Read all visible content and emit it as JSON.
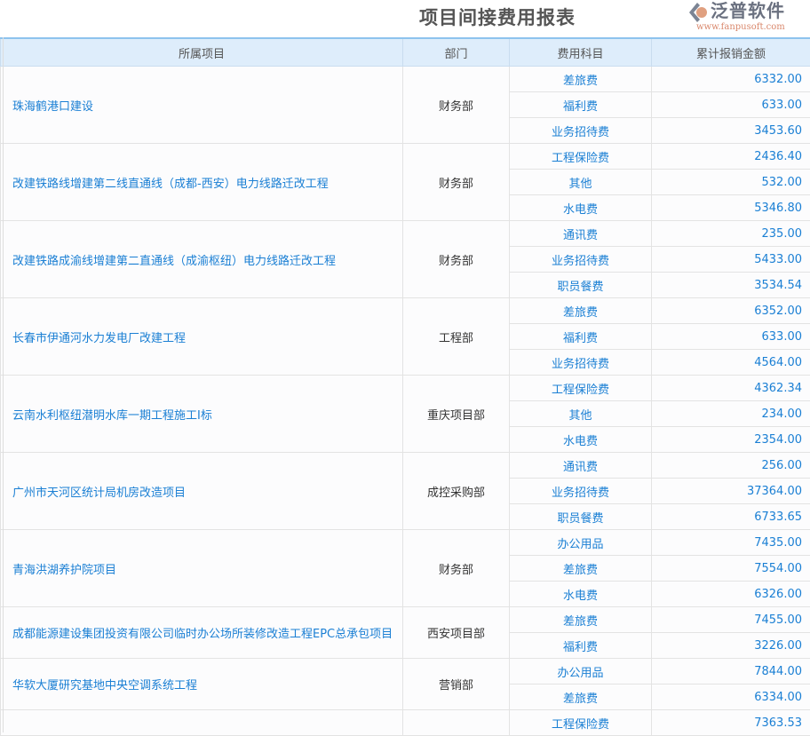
{
  "title": "项目间接费用报表",
  "columns": [
    "所属项目",
    "部门",
    "费用科目",
    "累计报销金额"
  ],
  "groups": [
    {
      "project": "珠海鹤港口建设",
      "dept": "财务部",
      "rows": [
        [
          "差旅费",
          "6332.00"
        ],
        [
          "福利费",
          "633.00"
        ],
        [
          "业务招待费",
          "3453.60"
        ]
      ]
    },
    {
      "project": "改建铁路线增建第二线直通线（成都-西安）电力线路迁改工程",
      "dept": "财务部",
      "rows": [
        [
          "工程保险费",
          "2436.40"
        ],
        [
          "其他",
          "532.00"
        ],
        [
          "水电费",
          "5346.80"
        ]
      ]
    },
    {
      "project": "改建铁路成渝线增建第二直通线（成渝枢纽）电力线路迁改工程",
      "dept": "财务部",
      "rows": [
        [
          "通讯费",
          "235.00"
        ],
        [
          "业务招待费",
          "5433.00"
        ],
        [
          "职员餐费",
          "3534.54"
        ]
      ]
    },
    {
      "project": "长春市伊通河水力发电厂改建工程",
      "dept": "工程部",
      "rows": [
        [
          "差旅费",
          "6352.00"
        ],
        [
          "福利费",
          "633.00"
        ],
        [
          "业务招待费",
          "4564.00"
        ]
      ]
    },
    {
      "project": "云南水利枢纽潜明水库一期工程施工I标",
      "dept": "重庆项目部",
      "rows": [
        [
          "工程保险费",
          "4362.34"
        ],
        [
          "其他",
          "234.00"
        ],
        [
          "水电费",
          "2354.00"
        ]
      ]
    },
    {
      "project": "广州市天河区统计局机房改造项目",
      "dept": "成控采购部",
      "rows": [
        [
          "通讯费",
          "256.00"
        ],
        [
          "业务招待费",
          "37364.00"
        ],
        [
          "职员餐费",
          "6733.65"
        ]
      ]
    },
    {
      "project": "青海洪湖养护院项目",
      "dept": "财务部",
      "rows": [
        [
          "办公用品",
          "7435.00"
        ],
        [
          "差旅费",
          "7554.00"
        ],
        [
          "水电费",
          "6326.00"
        ]
      ]
    },
    {
      "project": "成都能源建设集团投资有限公司临时办公场所装修改造工程EPC总承包项目",
      "dept": "西安项目部",
      "rows": [
        [
          "差旅费",
          "7455.00"
        ],
        [
          "福利费",
          "3226.00"
        ]
      ]
    },
    {
      "project": "华软大厦研究基地中央空调系统工程",
      "dept": "营销部",
      "rows": [
        [
          "办公用品",
          "7844.00"
        ],
        [
          "差旅费",
          "6334.00"
        ]
      ]
    },
    {
      "project": "",
      "dept": "",
      "rows": [
        [
          "工程保险费",
          "7363.53"
        ]
      ]
    }
  ],
  "watermark": {
    "brand": "泛普软件",
    "url": "www.fanpusoft.com"
  }
}
